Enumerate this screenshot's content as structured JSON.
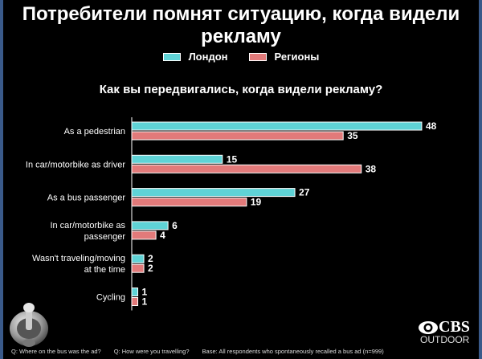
{
  "title_line1": "Потребители помнят ситуацию, когда видели",
  "title_line2": "рекламу",
  "question": "Как вы передвигались, когда видели рекламу?",
  "colors": {
    "series1": "#5fd3d6",
    "series2": "#e27a7a"
  },
  "footer": {
    "q1": "Q:  Where on the bus was the ad?",
    "q2": "Q:  How were you travelling?",
    "base": "Base: All respondents who spontaneously recalled a bus ad  (n=999)"
  },
  "logo": {
    "word": "CBS",
    "sub": "OUTDOOR"
  },
  "chart_data": {
    "type": "bar",
    "orientation": "horizontal",
    "categories": [
      [
        "As a pedestrian"
      ],
      [
        "In car/motorbike as driver"
      ],
      [
        "As a bus passenger"
      ],
      [
        "In car/motorbike as",
        "passenger"
      ],
      [
        "Wasn't traveling/moving",
        "at the time"
      ],
      [
        "Cycling"
      ]
    ],
    "series": [
      {
        "name": "Лондон",
        "values": [
          48,
          15,
          27,
          6,
          2,
          1
        ]
      },
      {
        "name": "Регионы",
        "values": [
          35,
          38,
          19,
          4,
          2,
          1
        ]
      }
    ],
    "legend": "top-center",
    "grid": false,
    "xlim": [
      0,
      50
    ]
  }
}
